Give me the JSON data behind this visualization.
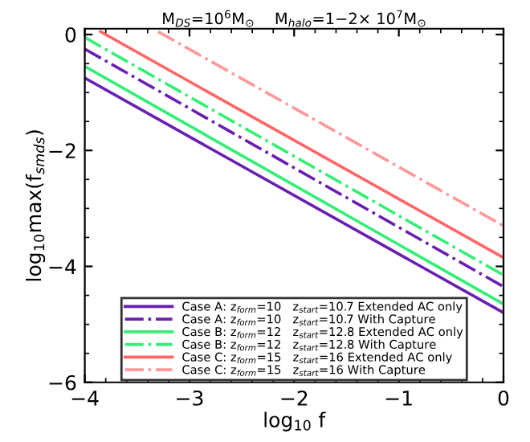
{
  "chart_data": {
    "type": "line",
    "title": "M$_{DS}$=10$^{6}$M$_{⊙}$    M$_{halo}$=1−2× 10$^{7}$M$_{⊙}$",
    "xlabel": "log$_{10}$ f",
    "ylabel": "log$_{10}$max(f$_{smds}$)",
    "xlim": [
      -4,
      0
    ],
    "ylim": [
      -6,
      0.1
    ],
    "xticks": [
      {
        "value": -4,
        "label": "−4"
      },
      {
        "value": -3,
        "label": "−3"
      },
      {
        "value": -2,
        "label": "−2"
      },
      {
        "value": -1,
        "label": "−1"
      },
      0
    ],
    "yticks": [
      {
        "value": -6,
        "label": "−6"
      },
      {
        "value": -4,
        "label": "−4"
      },
      {
        "value": -2,
        "label": "−2"
      },
      0
    ],
    "grid": false,
    "legend": "bottom",
    "marker": "none",
    "series": [
      {
        "name": "Case A: z$_{form}$=10   z$_{start}$=10.7 Extended AC only",
        "color": "#6a1fb0",
        "line_style": "solid",
        "x": [
          -4,
          0
        ],
        "values": [
          -0.75,
          -4.8
        ]
      },
      {
        "name": "Case A: z$_{form}$=10   z$_{start}$=10.7 With Capture",
        "color": "#6a1fb0",
        "line_style": "dashdot",
        "x": [
          -4,
          0
        ],
        "values": [
          -0.25,
          -4.35
        ]
      },
      {
        "name": "Case B: z$_{form}$=12   z$_{start}$=12.8 Extended AC only",
        "color": "#33ee77",
        "line_style": "solid",
        "x": [
          -4,
          0
        ],
        "values": [
          -0.55,
          -4.65
        ]
      },
      {
        "name": "Case B: z$_{form}$=12   z$_{start}$=12.8 With Capture",
        "color": "#33ee77",
        "line_style": "dashdot",
        "x": [
          -4,
          0
        ],
        "values": [
          -0.05,
          -4.15
        ]
      },
      {
        "name": "Case C: z$_{form}$=15   z$_{start}$=16 Extended AC only",
        "color": "#ff6666",
        "line_style": "solid",
        "x": [
          -3.85,
          0
        ],
        "values": [
          0.05,
          -3.85
        ]
      },
      {
        "name": "Case C: z$_{form}$=15   z$_{start}$=16 With Capture",
        "color": "#ff9999",
        "line_style": "dashdot",
        "x": [
          -3.3,
          0
        ],
        "values": [
          0.05,
          -3.3
        ]
      }
    ]
  }
}
